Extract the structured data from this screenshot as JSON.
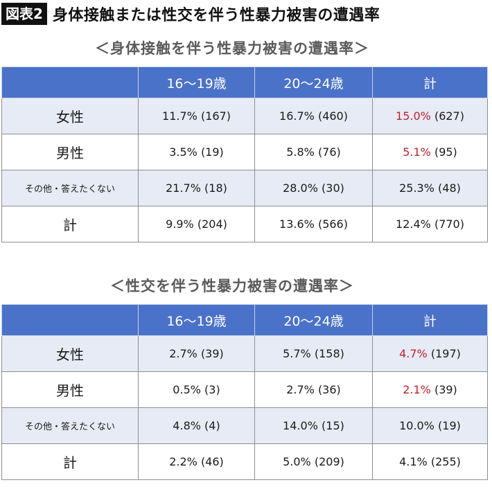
{
  "header": {
    "badge": "図表2",
    "title": "身体接触または性交を伴う性暴力被害の遭遇率"
  },
  "colors": {
    "header_blue": "#4a72c8",
    "row_tint": "#e6ebf5",
    "highlight_red": "#c0202a"
  },
  "sections": [
    {
      "title": "＜身体接触を伴う性暴力被害の遭遇率＞",
      "columns": [
        "16〜19歳",
        "20〜24歳",
        "計"
      ],
      "rows": [
        {
          "label": "女性",
          "c1": "11.7% (167)",
          "c2": "16.7% (460)",
          "c3_pct": "15.0%",
          "c3_n": " (627)"
        },
        {
          "label": "男性",
          "c1": "3.5% (19)",
          "c2": "5.8% (76)",
          "c3_pct": "5.1%",
          "c3_n": " (95)"
        },
        {
          "label": "その他・答えたくない",
          "c1": "21.7% (18)",
          "c2": "28.0% (30)",
          "c3": "25.3% (48)"
        },
        {
          "label": "計",
          "c1": "9.9% (204)",
          "c2": "13.6% (566)",
          "c3": "12.4% (770)"
        }
      ]
    },
    {
      "title": "＜性交を伴う性暴力被害の遭遇率＞",
      "columns": [
        "16〜19歳",
        "20〜24歳",
        "計"
      ],
      "rows": [
        {
          "label": "女性",
          "c1": "2.7% (39)",
          "c2": "5.7% (158)",
          "c3_pct": "4.7%",
          "c3_n": " (197)"
        },
        {
          "label": "男性",
          "c1": "0.5% (3)",
          "c2": "2.7% (36)",
          "c3_pct": "2.1%",
          "c3_n": " (39)"
        },
        {
          "label": "その他・答えたくない",
          "c1": "4.8% (4)",
          "c2": "14.0% (15)",
          "c3": "10.0% (19)"
        },
        {
          "label": "計",
          "c1": "2.2% (46)",
          "c2": "5.0% (209)",
          "c3": "4.1% (255)"
        }
      ]
    }
  ]
}
